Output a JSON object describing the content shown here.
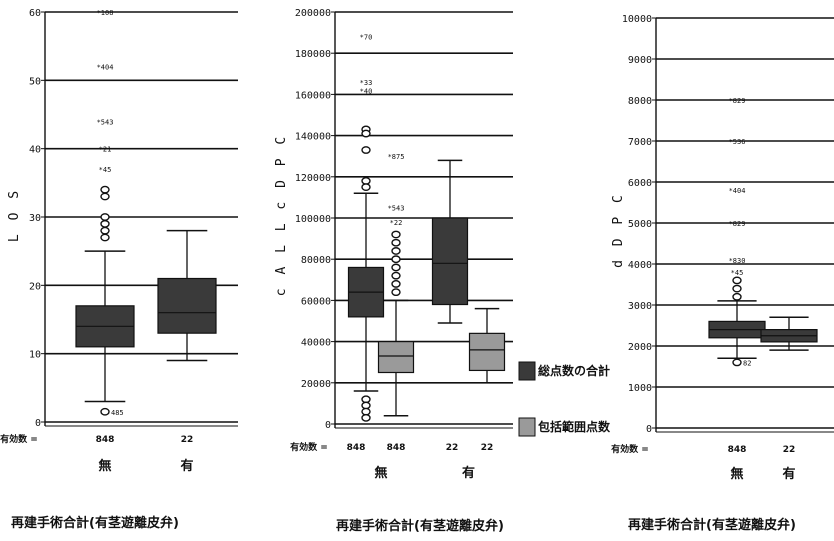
{
  "chart_data": [
    {
      "type": "boxplot",
      "ylabel": "L O S",
      "ylim": [
        0,
        60
      ],
      "yticks": [
        "0",
        "10",
        "20",
        "30",
        "40",
        "50",
        "60"
      ],
      "grid": true,
      "n_label": "有効数 =",
      "caption": "再建手術合計(有茎遊離皮弁)",
      "categories": [
        {
          "label": "無",
          "n": "848",
          "boxes": [
            {
              "series": "",
              "color": "#3a3a3a",
              "min": 3,
              "q1": 11,
              "median": 14,
              "q3": 17,
              "max": 25,
              "outliers": [
                {
                  "v": 60,
                  "t": "*108"
                },
                {
                  "v": 52,
                  "t": "*404"
                },
                {
                  "v": 44,
                  "t": "*543"
                },
                {
                  "v": 40,
                  "t": "*21"
                },
                {
                  "v": 37,
                  "t": "*45"
                },
                {
                  "v": 34,
                  "t": "o"
                },
                {
                  "v": 33,
                  "t": "o"
                },
                {
                  "v": 30,
                  "t": "o"
                },
                {
                  "v": 29,
                  "t": "o"
                },
                {
                  "v": 28,
                  "t": "o"
                },
                {
                  "v": 27,
                  "t": "o"
                },
                {
                  "v": 1.5,
                  "t": "o 485",
                  "circle": true
                }
              ]
            }
          ]
        },
        {
          "label": "有",
          "n": "22",
          "boxes": [
            {
              "series": "",
              "color": "#3a3a3a",
              "min": 9,
              "q1": 13,
              "median": 16,
              "q3": 21,
              "max": 28,
              "outliers": []
            }
          ]
        }
      ]
    },
    {
      "type": "boxplot",
      "ylabel": "c A L L c D P C",
      "ylim": [
        0,
        200000
      ],
      "yticks": [
        "0",
        "20000",
        "40000",
        "60000",
        "80000",
        "100000",
        "120000",
        "140000",
        "160000",
        "180000",
        "200000"
      ],
      "grid": true,
      "n_label": "有効数 =",
      "caption": "再建手術合計(有茎遊離皮弁)",
      "legend": [
        {
          "name": "総点数の合計",
          "color": "#3a3a3a"
        },
        {
          "name": "包括範囲点数",
          "color": "#9a9a9a"
        }
      ],
      "categories": [
        {
          "label": "無",
          "n": [
            "848",
            "848"
          ],
          "boxes": [
            {
              "series": "総点数の合計",
              "color": "#3a3a3a",
              "min": 16000,
              "q1": 52000,
              "median": 64000,
              "q3": 76000,
              "max": 112000,
              "outliers": [
                {
                  "v": 188000,
                  "t": "*70"
                },
                {
                  "v": 166000,
                  "t": "*33"
                },
                {
                  "v": 162000,
                  "t": "*40"
                },
                {
                  "v": 143000,
                  "t": "o"
                },
                {
                  "v": 141000,
                  "t": "o"
                },
                {
                  "v": 133000,
                  "t": "o"
                },
                {
                  "v": 118000,
                  "t": "o"
                },
                {
                  "v": 115000,
                  "t": "o"
                },
                {
                  "v": 12000,
                  "t": "o"
                },
                {
                  "v": 9000,
                  "t": "o"
                },
                {
                  "v": 6000,
                  "t": "o"
                },
                {
                  "v": 3000,
                  "t": "o"
                }
              ]
            },
            {
              "series": "包括範囲点数",
              "color": "#9a9a9a",
              "min": 4000,
              "q1": 25000,
              "median": 33000,
              "q3": 40000,
              "max": 60000,
              "outliers": [
                {
                  "v": 130000,
                  "t": "*875"
                },
                {
                  "v": 105000,
                  "t": "*543"
                },
                {
                  "v": 98000,
                  "t": "*22"
                },
                {
                  "v": 92000,
                  "t": "o"
                },
                {
                  "v": 88000,
                  "t": "o"
                },
                {
                  "v": 84000,
                  "t": "o"
                },
                {
                  "v": 80000,
                  "t": "o"
                },
                {
                  "v": 76000,
                  "t": "o"
                },
                {
                  "v": 72000,
                  "t": "o"
                },
                {
                  "v": 68000,
                  "t": "o"
                },
                {
                  "v": 64000,
                  "t": "o"
                }
              ]
            }
          ]
        },
        {
          "label": "有",
          "n": [
            "22",
            "22"
          ],
          "boxes": [
            {
              "series": "総点数の合計",
              "color": "#3a3a3a",
              "min": 49000,
              "q1": 58000,
              "median": 78000,
              "q3": 100000,
              "max": 128000,
              "outliers": []
            },
            {
              "series": "包括範囲点数",
              "color": "#9a9a9a",
              "min": 20000,
              "q1": 26000,
              "median": 36000,
              "q3": 44000,
              "max": 56000,
              "outliers": []
            }
          ]
        }
      ]
    },
    {
      "type": "boxplot",
      "ylabel": "d D P C",
      "ylim": [
        0,
        10000
      ],
      "yticks": [
        "0",
        "1000",
        "2000",
        "3000",
        "4000",
        "5000",
        "6000",
        "7000",
        "8000",
        "9000",
        "10000"
      ],
      "grid": true,
      "n_label": "有効数 =",
      "caption": "再建手術合計(有茎遊離皮弁)",
      "categories": [
        {
          "label": "無",
          "n": "848",
          "boxes": [
            {
              "series": "",
              "color": "#3a3a3a",
              "min": 1700,
              "q1": 2200,
              "median": 2400,
              "q3": 2600,
              "max": 3100,
              "outliers": [
                {
                  "v": 8000,
                  "t": "*829"
                },
                {
                  "v": 7000,
                  "t": "*536"
                },
                {
                  "v": 5800,
                  "t": "*404"
                },
                {
                  "v": 5000,
                  "t": "*829"
                },
                {
                  "v": 4100,
                  "t": "*830"
                },
                {
                  "v": 3800,
                  "t": "*45"
                },
                {
                  "v": 3600,
                  "t": "o"
                },
                {
                  "v": 3400,
                  "t": "o"
                },
                {
                  "v": 3200,
                  "t": "o"
                },
                {
                  "v": 1600,
                  "t": "o 82",
                  "circle": true
                }
              ]
            }
          ]
        },
        {
          "label": "有",
          "n": "22",
          "boxes": [
            {
              "series": "",
              "color": "#3a3a3a",
              "min": 1900,
              "q1": 2100,
              "median": 2250,
              "q3": 2400,
              "max": 2700,
              "outliers": []
            }
          ]
        }
      ]
    }
  ]
}
